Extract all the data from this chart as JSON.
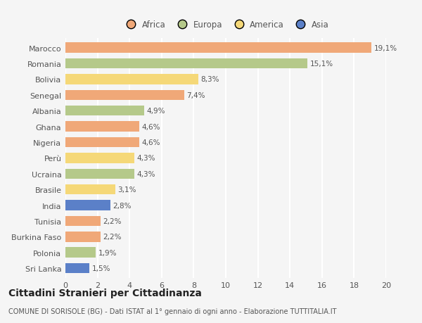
{
  "countries": [
    "Marocco",
    "Romania",
    "Bolivia",
    "Senegal",
    "Albania",
    "Ghana",
    "Nigeria",
    "Perù",
    "Ucraina",
    "Brasile",
    "India",
    "Tunisia",
    "Burkina Faso",
    "Polonia",
    "Sri Lanka"
  ],
  "values": [
    19.1,
    15.1,
    8.3,
    7.4,
    4.9,
    4.6,
    4.6,
    4.3,
    4.3,
    3.1,
    2.8,
    2.2,
    2.2,
    1.9,
    1.5
  ],
  "continents": [
    "Africa",
    "Europa",
    "America",
    "Africa",
    "Europa",
    "Africa",
    "Africa",
    "America",
    "Europa",
    "America",
    "Asia",
    "Africa",
    "Africa",
    "Europa",
    "Asia"
  ],
  "colors": {
    "Africa": "#F0A878",
    "Europa": "#B5C98A",
    "America": "#F5D878",
    "Asia": "#5B80C8"
  },
  "legend_order": [
    "Africa",
    "Europa",
    "America",
    "Asia"
  ],
  "xlim": [
    0,
    20
  ],
  "xticks": [
    0,
    2,
    4,
    6,
    8,
    10,
    12,
    14,
    16,
    18,
    20
  ],
  "title_main": "Cittadini Stranieri per Cittadinanza",
  "title_sub": "COMUNE DI SORISOLE (BG) - Dati ISTAT al 1° gennaio di ogni anno - Elaborazione TUTTITALIA.IT",
  "background_color": "#f5f5f5",
  "bar_height": 0.65,
  "grid_color": "#ffffff",
  "label_fontsize": 8,
  "value_fontsize": 7.5,
  "tick_fontsize": 8,
  "legend_fontsize": 8.5,
  "title_fontsize": 10,
  "subtitle_fontsize": 7
}
